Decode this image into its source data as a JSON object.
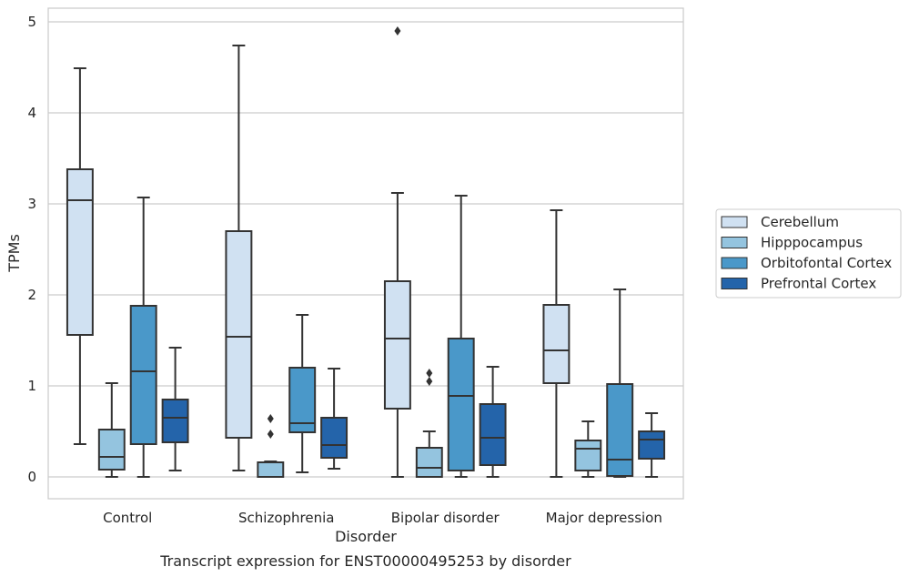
{
  "caption": "Transcript expression for ENST00000495253 by disorder",
  "chart_data": {
    "type": "box",
    "xlabel": "Disorder",
    "ylabel": "TPMs",
    "ylim": [
      -0.24,
      5.15
    ],
    "yticks": [
      0,
      1,
      2,
      3,
      4,
      5
    ],
    "grid": "horizontal",
    "legend_position": "right",
    "categories": [
      "Control",
      "Schizophrenia",
      "Bipolar disorder",
      "Major depression"
    ],
    "series": [
      {
        "name": "Cerebellum",
        "color": "#d0e1f2",
        "boxes": [
          {
            "whislo": 0.36,
            "q1": 1.56,
            "median": 3.04,
            "q3": 3.38,
            "whishi": 4.49,
            "fliers": []
          },
          {
            "whislo": 0.07,
            "q1": 0.43,
            "median": 1.54,
            "q3": 2.7,
            "whishi": 4.74,
            "fliers": []
          },
          {
            "whislo": 0.0,
            "q1": 0.75,
            "median": 1.52,
            "q3": 2.15,
            "whishi": 3.12,
            "fliers": [
              4.9
            ]
          },
          {
            "whislo": 0.0,
            "q1": 1.03,
            "median": 1.39,
            "q3": 1.89,
            "whishi": 2.93,
            "fliers": []
          }
        ]
      },
      {
        "name": "Hipppocampus",
        "color": "#94c4df",
        "boxes": [
          {
            "whislo": 0.0,
            "q1": 0.08,
            "median": 0.22,
            "q3": 0.52,
            "whishi": 1.03,
            "fliers": []
          },
          {
            "whislo": 0.0,
            "q1": 0.0,
            "median": 0.0,
            "q3": 0.16,
            "whishi": 0.17,
            "fliers": [
              0.47,
              0.64
            ]
          },
          {
            "whislo": 0.0,
            "q1": 0.0,
            "median": 0.1,
            "q3": 0.32,
            "whishi": 0.5,
            "fliers": [
              1.05,
              1.14
            ]
          },
          {
            "whislo": 0.0,
            "q1": 0.07,
            "median": 0.31,
            "q3": 0.4,
            "whishi": 0.61,
            "fliers": []
          }
        ]
      },
      {
        "name": "Orbitofontal Cortex",
        "color": "#4a98c9",
        "boxes": [
          {
            "whislo": 0.0,
            "q1": 0.36,
            "median": 1.16,
            "q3": 1.88,
            "whishi": 3.07,
            "fliers": []
          },
          {
            "whislo": 0.05,
            "q1": 0.49,
            "median": 0.59,
            "q3": 1.2,
            "whishi": 1.78,
            "fliers": []
          },
          {
            "whislo": 0.0,
            "q1": 0.07,
            "median": 0.89,
            "q3": 1.52,
            "whishi": 3.09,
            "fliers": []
          },
          {
            "whislo": 0.0,
            "q1": 0.01,
            "median": 0.19,
            "q3": 1.02,
            "whishi": 2.06,
            "fliers": []
          }
        ]
      },
      {
        "name": "Prefrontal Cortex",
        "color": "#2464aa",
        "boxes": [
          {
            "whislo": 0.07,
            "q1": 0.38,
            "median": 0.65,
            "q3": 0.85,
            "whishi": 1.42,
            "fliers": []
          },
          {
            "whislo": 0.09,
            "q1": 0.21,
            "median": 0.35,
            "q3": 0.65,
            "whishi": 1.19,
            "fliers": []
          },
          {
            "whislo": 0.0,
            "q1": 0.13,
            "median": 0.43,
            "q3": 0.8,
            "whishi": 1.21,
            "fliers": []
          },
          {
            "whislo": 0.0,
            "q1": 0.2,
            "median": 0.41,
            "q3": 0.5,
            "whishi": 0.7,
            "fliers": []
          }
        ]
      }
    ]
  }
}
